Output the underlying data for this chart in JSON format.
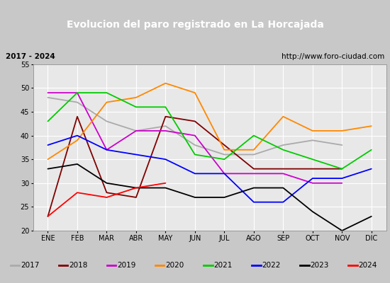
{
  "title": "Evolucion del paro registrado en La Horcajada",
  "subtitle_left": "2017 - 2024",
  "subtitle_right": "http://www.foro-ciudad.com",
  "months": [
    "ENE",
    "FEB",
    "MAR",
    "ABR",
    "MAY",
    "JUN",
    "JUL",
    "AGO",
    "SEP",
    "OCT",
    "NOV",
    "DIC"
  ],
  "ylim": [
    20,
    55
  ],
  "yticks": [
    20,
    25,
    30,
    35,
    40,
    45,
    50,
    55
  ],
  "series": {
    "2017": {
      "color": "#aaaaaa",
      "values": [
        48,
        47,
        43,
        41,
        42,
        38,
        36,
        36,
        38,
        39,
        38,
        null
      ]
    },
    "2018": {
      "color": "#800000",
      "values": [
        23,
        44,
        28,
        27,
        44,
        43,
        38,
        33,
        33,
        33,
        33,
        null
      ]
    },
    "2019": {
      "color": "#cc00cc",
      "values": [
        49,
        49,
        37,
        41,
        41,
        40,
        32,
        32,
        32,
        30,
        30,
        null
      ]
    },
    "2020": {
      "color": "#ff8800",
      "values": [
        35,
        39,
        47,
        48,
        51,
        49,
        37,
        37,
        44,
        41,
        41,
        42
      ]
    },
    "2021": {
      "color": "#00cc00",
      "values": [
        43,
        49,
        49,
        46,
        46,
        36,
        35,
        40,
        37,
        35,
        33,
        37
      ]
    },
    "2022": {
      "color": "#0000ff",
      "values": [
        38,
        40,
        37,
        36,
        35,
        32,
        32,
        26,
        26,
        31,
        31,
        33
      ]
    },
    "2023": {
      "color": "#000000",
      "values": [
        33,
        34,
        30,
        29,
        29,
        27,
        27,
        29,
        29,
        24,
        20,
        23
      ]
    },
    "2024": {
      "color": "#ff0000",
      "values": [
        23,
        28,
        27,
        29,
        30,
        null,
        null,
        null,
        null,
        null,
        null,
        null
      ]
    }
  },
  "title_bg_color": "#3366cc",
  "title_fg_color": "#ffffff",
  "plot_bg_color": "#e8e8e8",
  "grid_color": "#ffffff",
  "legend_bg_color": "#f0f0f0",
  "fig_bg_color": "#c8c8c8",
  "subtitle_bg_color": "#f0f0f0",
  "title_fontsize": 10,
  "subtitle_fontsize": 7.5,
  "tick_fontsize": 7,
  "legend_fontsize": 7.5
}
